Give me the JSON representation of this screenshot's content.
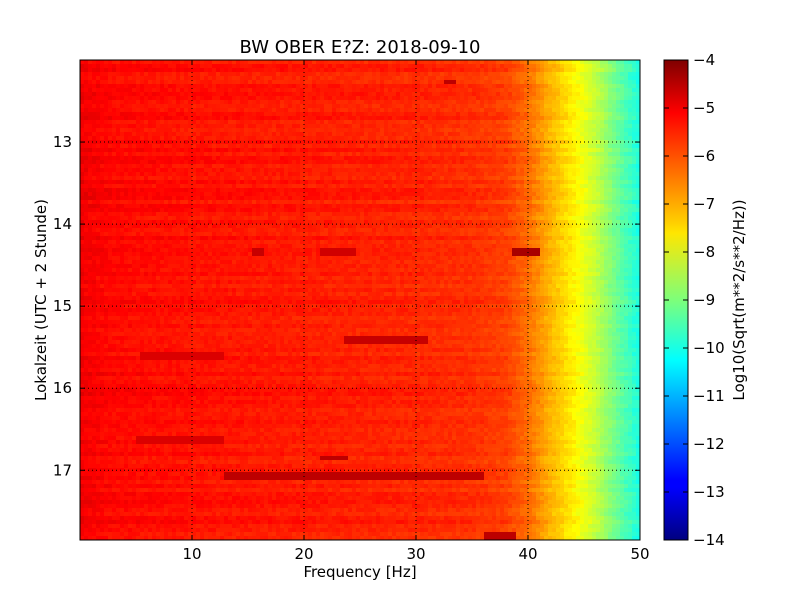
{
  "chart_data": {
    "type": "heatmap",
    "title": "BW OBER E?Z: 2018-09-10",
    "xlabel": "Frequency [Hz]",
    "ylabel": "Lokalzeit (UTC + 2 Stunde)",
    "xlim": [
      0,
      50
    ],
    "ylim": [
      12.0,
      17.85
    ],
    "y_inverted": true,
    "grid": true,
    "x_ticks": [
      10,
      20,
      30,
      40,
      50
    ],
    "x_tick_labels": [
      "10",
      "20",
      "30",
      "40",
      "50"
    ],
    "y_ticks": [
      13,
      14,
      15,
      16,
      17
    ],
    "y_tick_labels": [
      "13",
      "14",
      "15",
      "16",
      "17"
    ],
    "colorbar": {
      "label": "Log10(Sqrt(m**2/s**2/Hz))",
      "range": [
        -14,
        -4
      ],
      "ticks": [
        -4,
        -5,
        -6,
        -7,
        -8,
        -9,
        -10,
        -11,
        -12,
        -13,
        -14
      ],
      "tick_labels": [
        "−4",
        "−5",
        "−6",
        "−7",
        "−8",
        "−9",
        "−10",
        "−11",
        "−12",
        "−13",
        "−14"
      ],
      "colormap": "jet"
    },
    "spectrum_profile": {
      "frequency_hz": [
        0,
        1,
        3,
        6,
        10,
        20,
        30,
        35,
        38,
        40,
        42,
        44,
        46,
        48,
        50
      ],
      "log10_amplitude": [
        -5.1,
        -5.2,
        -5.3,
        -5.35,
        -5.4,
        -5.5,
        -5.6,
        -5.7,
        -5.85,
        -6.3,
        -7.0,
        -7.6,
        -8.3,
        -9.2,
        -10.0
      ]
    },
    "notable_bands": [
      {
        "time": 12.27,
        "from_hz": 32.5,
        "to_hz": 33.5,
        "log10_amplitude": -4.6
      },
      {
        "time": 14.35,
        "from_hz": 15.5,
        "to_hz": 16.5,
        "log10_amplitude": -4.7
      },
      {
        "time": 14.35,
        "from_hz": 21.5,
        "to_hz": 24.5,
        "log10_amplitude": -4.8
      },
      {
        "time": 14.35,
        "from_hz": 38.5,
        "to_hz": 41.0,
        "log10_amplitude": -4.4
      },
      {
        "time": 15.4,
        "from_hz": 23.5,
        "to_hz": 31.0,
        "log10_amplitude": -4.7
      },
      {
        "time": 15.6,
        "from_hz": 5.5,
        "to_hz": 13.0,
        "log10_amplitude": -4.9
      },
      {
        "time": 16.62,
        "from_hz": 5.0,
        "to_hz": 13.0,
        "log10_amplitude": -4.9
      },
      {
        "time": 16.85,
        "from_hz": 21.5,
        "to_hz": 24.0,
        "log10_amplitude": -4.6
      },
      {
        "time": 17.07,
        "from_hz": 13.0,
        "to_hz": 36.0,
        "log10_amplitude": -4.6
      },
      {
        "time": 17.8,
        "from_hz": 36.0,
        "to_hz": 39.0,
        "log10_amplitude": -4.6
      }
    ]
  }
}
